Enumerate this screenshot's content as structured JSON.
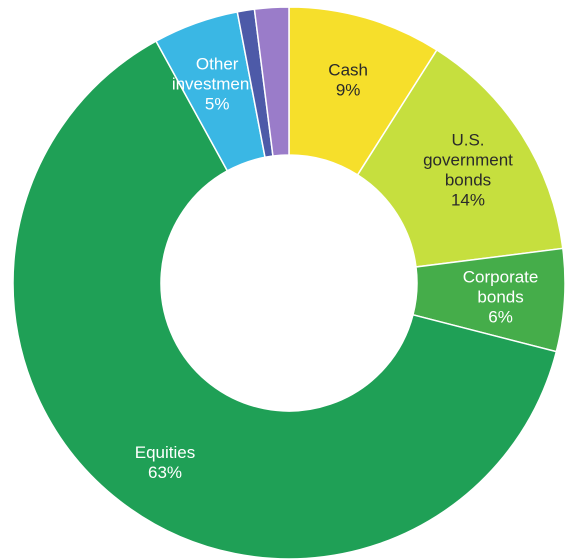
{
  "chart_data": {
    "type": "pie",
    "donut": true,
    "title": "",
    "slices": [
      {
        "label": [
          "Cash",
          "9%"
        ],
        "value": 9,
        "color": "#f6df2b",
        "text": "dark"
      },
      {
        "label": [
          "U.S.",
          "government",
          "bonds",
          "14%"
        ],
        "value": 14,
        "color": "#c6df3e",
        "text": "dark"
      },
      {
        "label": [
          "Corporate",
          "bonds",
          "6%"
        ],
        "value": 6,
        "color": "#45ad4a",
        "text": "light"
      },
      {
        "label": [
          "Equities",
          "63%"
        ],
        "value": 63,
        "color": "#1fa056",
        "text": "light"
      },
      {
        "label": [
          "Other",
          "investments",
          "5%"
        ],
        "value": 5,
        "color": "#3ab7e4",
        "text": "light"
      },
      {
        "label": [],
        "value": 1,
        "color": "#4d5aa8",
        "text": "light"
      },
      {
        "label": [],
        "value": 2,
        "color": "#9a7cc9",
        "text": "light"
      }
    ]
  }
}
